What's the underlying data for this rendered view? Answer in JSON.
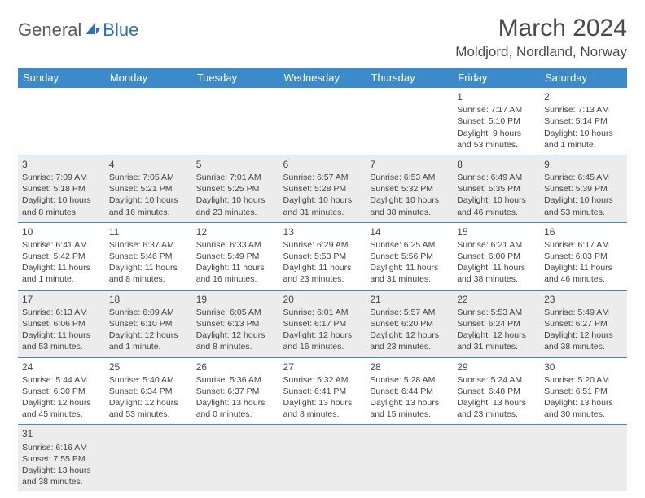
{
  "logo": {
    "part1": "General",
    "part2": "Blue"
  },
  "title": "March 2024",
  "location": "Moldjord, Nordland, Norway",
  "colors": {
    "header_bg": "#3b8bca",
    "header_text": "#ffffff",
    "row_alt_bg": "#ececec",
    "border": "#3b8bca",
    "logo_gray": "#5a5a5a",
    "logo_blue": "#2f6fb5"
  },
  "weekdays": [
    "Sunday",
    "Monday",
    "Tuesday",
    "Wednesday",
    "Thursday",
    "Friday",
    "Saturday"
  ],
  "weeks": [
    [
      null,
      null,
      null,
      null,
      null,
      {
        "n": "1",
        "sr": "Sunrise: 7:17 AM",
        "ss": "Sunset: 5:10 PM",
        "dl": "Daylight: 9 hours and 53 minutes."
      },
      {
        "n": "2",
        "sr": "Sunrise: 7:13 AM",
        "ss": "Sunset: 5:14 PM",
        "dl": "Daylight: 10 hours and 1 minute."
      }
    ],
    [
      {
        "n": "3",
        "sr": "Sunrise: 7:09 AM",
        "ss": "Sunset: 5:18 PM",
        "dl": "Daylight: 10 hours and 8 minutes."
      },
      {
        "n": "4",
        "sr": "Sunrise: 7:05 AM",
        "ss": "Sunset: 5:21 PM",
        "dl": "Daylight: 10 hours and 16 minutes."
      },
      {
        "n": "5",
        "sr": "Sunrise: 7:01 AM",
        "ss": "Sunset: 5:25 PM",
        "dl": "Daylight: 10 hours and 23 minutes."
      },
      {
        "n": "6",
        "sr": "Sunrise: 6:57 AM",
        "ss": "Sunset: 5:28 PM",
        "dl": "Daylight: 10 hours and 31 minutes."
      },
      {
        "n": "7",
        "sr": "Sunrise: 6:53 AM",
        "ss": "Sunset: 5:32 PM",
        "dl": "Daylight: 10 hours and 38 minutes."
      },
      {
        "n": "8",
        "sr": "Sunrise: 6:49 AM",
        "ss": "Sunset: 5:35 PM",
        "dl": "Daylight: 10 hours and 46 minutes."
      },
      {
        "n": "9",
        "sr": "Sunrise: 6:45 AM",
        "ss": "Sunset: 5:39 PM",
        "dl": "Daylight: 10 hours and 53 minutes."
      }
    ],
    [
      {
        "n": "10",
        "sr": "Sunrise: 6:41 AM",
        "ss": "Sunset: 5:42 PM",
        "dl": "Daylight: 11 hours and 1 minute."
      },
      {
        "n": "11",
        "sr": "Sunrise: 6:37 AM",
        "ss": "Sunset: 5:46 PM",
        "dl": "Daylight: 11 hours and 8 minutes."
      },
      {
        "n": "12",
        "sr": "Sunrise: 6:33 AM",
        "ss": "Sunset: 5:49 PM",
        "dl": "Daylight: 11 hours and 16 minutes."
      },
      {
        "n": "13",
        "sr": "Sunrise: 6:29 AM",
        "ss": "Sunset: 5:53 PM",
        "dl": "Daylight: 11 hours and 23 minutes."
      },
      {
        "n": "14",
        "sr": "Sunrise: 6:25 AM",
        "ss": "Sunset: 5:56 PM",
        "dl": "Daylight: 11 hours and 31 minutes."
      },
      {
        "n": "15",
        "sr": "Sunrise: 6:21 AM",
        "ss": "Sunset: 6:00 PM",
        "dl": "Daylight: 11 hours and 38 minutes."
      },
      {
        "n": "16",
        "sr": "Sunrise: 6:17 AM",
        "ss": "Sunset: 6:03 PM",
        "dl": "Daylight: 11 hours and 46 minutes."
      }
    ],
    [
      {
        "n": "17",
        "sr": "Sunrise: 6:13 AM",
        "ss": "Sunset: 6:06 PM",
        "dl": "Daylight: 11 hours and 53 minutes."
      },
      {
        "n": "18",
        "sr": "Sunrise: 6:09 AM",
        "ss": "Sunset: 6:10 PM",
        "dl": "Daylight: 12 hours and 1 minute."
      },
      {
        "n": "19",
        "sr": "Sunrise: 6:05 AM",
        "ss": "Sunset: 6:13 PM",
        "dl": "Daylight: 12 hours and 8 minutes."
      },
      {
        "n": "20",
        "sr": "Sunrise: 6:01 AM",
        "ss": "Sunset: 6:17 PM",
        "dl": "Daylight: 12 hours and 16 minutes."
      },
      {
        "n": "21",
        "sr": "Sunrise: 5:57 AM",
        "ss": "Sunset: 6:20 PM",
        "dl": "Daylight: 12 hours and 23 minutes."
      },
      {
        "n": "22",
        "sr": "Sunrise: 5:53 AM",
        "ss": "Sunset: 6:24 PM",
        "dl": "Daylight: 12 hours and 31 minutes."
      },
      {
        "n": "23",
        "sr": "Sunrise: 5:49 AM",
        "ss": "Sunset: 6:27 PM",
        "dl": "Daylight: 12 hours and 38 minutes."
      }
    ],
    [
      {
        "n": "24",
        "sr": "Sunrise: 5:44 AM",
        "ss": "Sunset: 6:30 PM",
        "dl": "Daylight: 12 hours and 45 minutes."
      },
      {
        "n": "25",
        "sr": "Sunrise: 5:40 AM",
        "ss": "Sunset: 6:34 PM",
        "dl": "Daylight: 12 hours and 53 minutes."
      },
      {
        "n": "26",
        "sr": "Sunrise: 5:36 AM",
        "ss": "Sunset: 6:37 PM",
        "dl": "Daylight: 13 hours and 0 minutes."
      },
      {
        "n": "27",
        "sr": "Sunrise: 5:32 AM",
        "ss": "Sunset: 6:41 PM",
        "dl": "Daylight: 13 hours and 8 minutes."
      },
      {
        "n": "28",
        "sr": "Sunrise: 5:28 AM",
        "ss": "Sunset: 6:44 PM",
        "dl": "Daylight: 13 hours and 15 minutes."
      },
      {
        "n": "29",
        "sr": "Sunrise: 5:24 AM",
        "ss": "Sunset: 6:48 PM",
        "dl": "Daylight: 13 hours and 23 minutes."
      },
      {
        "n": "30",
        "sr": "Sunrise: 5:20 AM",
        "ss": "Sunset: 6:51 PM",
        "dl": "Daylight: 13 hours and 30 minutes."
      }
    ],
    [
      {
        "n": "31",
        "sr": "Sunrise: 6:16 AM",
        "ss": "Sunset: 7:55 PM",
        "dl": "Daylight: 13 hours and 38 minutes."
      },
      null,
      null,
      null,
      null,
      null,
      null
    ]
  ]
}
